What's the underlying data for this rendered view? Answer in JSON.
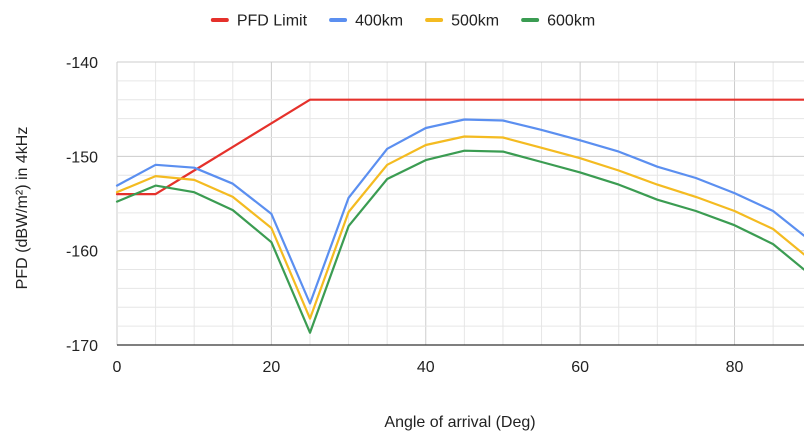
{
  "chart_data": {
    "type": "line",
    "title": "",
    "xlabel": "Angle of arrival (Deg)",
    "ylabel": "PFD (dBW/m²) in 4kHz",
    "xlim": [
      0,
      89
    ],
    "ylim": [
      -170,
      -140
    ],
    "xticks": [
      0,
      20,
      40,
      60,
      80
    ],
    "yticks": [
      -140,
      -150,
      -160,
      -170
    ],
    "grid": true,
    "legend_position": "top",
    "x": [
      0,
      5,
      10,
      15,
      20,
      25,
      30,
      35,
      40,
      45,
      50,
      55,
      60,
      65,
      70,
      75,
      80,
      85,
      89
    ],
    "series": [
      {
        "name": "PFD Limit",
        "color": "#e5312b",
        "values": [
          -154,
          -154,
          -151.5,
          -149,
          -146.5,
          -144,
          -144,
          -144,
          -144,
          -144,
          -144,
          -144,
          -144,
          -144,
          -144,
          -144,
          -144,
          -144,
          -144
        ]
      },
      {
        "name": "400km",
        "color": "#5b8ff0",
        "values": [
          -153.1,
          -150.9,
          -151.2,
          -152.9,
          -156.1,
          -165.6,
          -154.4,
          -149.2,
          -147.0,
          -146.1,
          -146.2,
          -147.2,
          -148.3,
          -149.5,
          -151.1,
          -152.3,
          -153.9,
          -155.8,
          -158.4
        ]
      },
      {
        "name": "500km",
        "color": "#f4bb21",
        "values": [
          -153.8,
          -152.1,
          -152.5,
          -154.3,
          -157.6,
          -167.2,
          -155.9,
          -150.9,
          -148.8,
          -147.9,
          -148.0,
          -149.1,
          -150.2,
          -151.5,
          -153.0,
          -154.3,
          -155.8,
          -157.7,
          -160.4
        ]
      },
      {
        "name": "600km",
        "color": "#3b9c52",
        "values": [
          -154.8,
          -153.1,
          -153.8,
          -155.7,
          -159.1,
          -168.7,
          -157.4,
          -152.4,
          -150.4,
          -149.4,
          -149.5,
          -150.6,
          -151.7,
          -153.0,
          -154.6,
          -155.8,
          -157.3,
          -159.3,
          -162.0
        ]
      }
    ]
  }
}
